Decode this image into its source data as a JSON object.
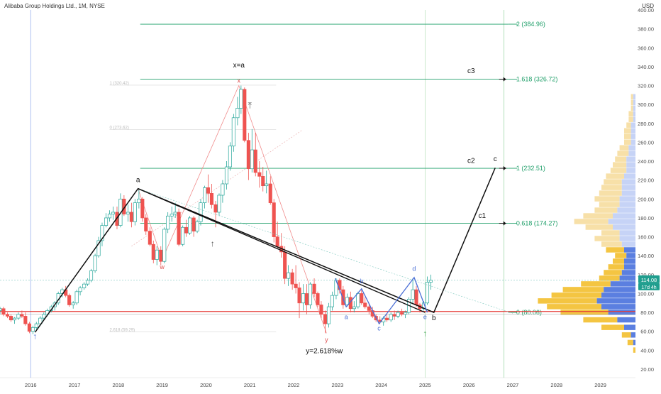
{
  "header": {
    "symbol_line": "Alibaba Group Holdings Ltd., 1M, NYSE",
    "currency": "USD"
  },
  "price_tags": {
    "last": "114.08",
    "countdown": "17d 4h"
  },
  "colors": {
    "up": "#26a69a",
    "down": "#ef5350",
    "fib": "#22a06b",
    "blue": "#4a6fd6",
    "hline_red": "#e53935"
  },
  "chart_data": {
    "type": "candlestick",
    "ylim": [
      20,
      400
    ],
    "xlim": [
      2015.3,
      2029.8
    ],
    "y_ticks": [
      20,
      40,
      60,
      80,
      100,
      120,
      140,
      160,
      180,
      200,
      220,
      240,
      260,
      280,
      300,
      320,
      340,
      360,
      380,
      400
    ],
    "x_ticks": [
      "2016",
      "2017",
      "2018",
      "2019",
      "2020",
      "2021",
      "2022",
      "2023",
      "2024",
      "2025",
      "2026",
      "2027",
      "2028",
      "2029"
    ],
    "x_tick_values": [
      2016,
      2017,
      2018,
      2019,
      2020,
      2021,
      2022,
      2023,
      2024,
      2025,
      2026,
      2027,
      2028,
      2029
    ],
    "fib_levels": [
      {
        "label": "2 (384.96)",
        "value": 384.96
      },
      {
        "label": "1.618 (326.72)",
        "value": 326.72
      },
      {
        "label": "1 (232.51)",
        "value": 232.51
      },
      {
        "label": "0.618 (174.27)",
        "value": 174.27
      },
      {
        "label": "0 (80.06)",
        "value": 80.06
      }
    ],
    "faded_fib": [
      {
        "label": "1 (320.42)",
        "value": 320.42
      },
      {
        "label": "0 (273.62)",
        "value": 273.62
      },
      {
        "label": "2.618 (59.29)",
        "value": 59.29
      }
    ],
    "wave_path": [
      [
        2016.1,
        59
      ],
      [
        2018.45,
        211
      ],
      [
        2025.2,
        80
      ],
      [
        2026.6,
        233
      ]
    ],
    "wave_labels": [
      {
        "text": "a",
        "x": 2018.45,
        "y": 218
      },
      {
        "text": "b",
        "x": 2025.2,
        "y": 72
      },
      {
        "text": "c",
        "x": 2026.6,
        "y": 240
      },
      {
        "text": "c1",
        "x": 2026.3,
        "y": 180
      },
      {
        "text": "c2",
        "x": 2026.05,
        "y": 238
      },
      {
        "text": "c3",
        "x": 2026.05,
        "y": 333
      },
      {
        "text": "x=a",
        "x": 2020.75,
        "y": 339
      }
    ],
    "pink_labels": [
      {
        "text": "x",
        "x": 2020.75,
        "y": 323
      },
      {
        "text": "w",
        "x": 2019.0,
        "y": 126
      },
      {
        "text": "y",
        "x": 2022.75,
        "y": 49
      }
    ],
    "blue_path": [
      [
        2022.95,
        116
      ],
      [
        2023.2,
        86
      ],
      [
        2023.55,
        105
      ],
      [
        2023.95,
        68
      ],
      [
        2024.75,
        117
      ],
      [
        2025.05,
        80
      ]
    ],
    "blue_labels": [
      {
        "text": "a",
        "x": 2023.2,
        "y": 73
      },
      {
        "text": "b",
        "x": 2023.55,
        "y": 111
      },
      {
        "text": "c",
        "x": 2023.95,
        "y": 61
      },
      {
        "text": "d",
        "x": 2024.75,
        "y": 124
      },
      {
        "text": "e",
        "x": 2025.0,
        "y": 73
      }
    ],
    "annotation": "y=2.618%w",
    "candles": [
      [
        2015.3,
        82,
        86,
        78,
        84
      ],
      [
        2015.38,
        84,
        86,
        76,
        78
      ],
      [
        2015.47,
        78,
        80,
        74,
        76
      ],
      [
        2015.55,
        76,
        78,
        70,
        72
      ],
      [
        2015.63,
        72,
        75,
        68,
        74
      ],
      [
        2015.72,
        74,
        80,
        72,
        78
      ],
      [
        2015.8,
        78,
        82,
        74,
        76
      ],
      [
        2015.88,
        76,
        80,
        66,
        68
      ],
      [
        2015.97,
        68,
        70,
        58,
        60
      ],
      [
        2016.05,
        60,
        66,
        57,
        64
      ],
      [
        2016.13,
        64,
        70,
        62,
        68
      ],
      [
        2016.22,
        68,
        76,
        66,
        74
      ],
      [
        2016.3,
        74,
        80,
        72,
        78
      ],
      [
        2016.38,
        78,
        84,
        76,
        82
      ],
      [
        2016.47,
        82,
        88,
        80,
        86
      ],
      [
        2016.55,
        86,
        92,
        82,
        90
      ],
      [
        2016.63,
        90,
        102,
        88,
        100
      ],
      [
        2016.72,
        100,
        106,
        96,
        104
      ],
      [
        2016.8,
        104,
        108,
        96,
        98
      ],
      [
        2016.88,
        98,
        100,
        86,
        88
      ],
      [
        2016.97,
        88,
        92,
        84,
        90
      ],
      [
        2017.05,
        90,
        104,
        88,
        102
      ],
      [
        2017.13,
        102,
        108,
        98,
        106
      ],
      [
        2017.22,
        106,
        112,
        104,
        110
      ],
      [
        2017.3,
        110,
        116,
        108,
        114
      ],
      [
        2017.38,
        114,
        126,
        112,
        124
      ],
      [
        2017.47,
        124,
        142,
        122,
        140
      ],
      [
        2017.55,
        140,
        160,
        138,
        156
      ],
      [
        2017.63,
        156,
        175,
        150,
        172
      ],
      [
        2017.72,
        172,
        185,
        170,
        180
      ],
      [
        2017.8,
        180,
        188,
        176,
        184
      ],
      [
        2017.88,
        184,
        192,
        178,
        186
      ],
      [
        2017.97,
        186,
        192,
        168,
        172
      ],
      [
        2018.05,
        172,
        206,
        170,
        200
      ],
      [
        2018.13,
        200,
        204,
        182,
        184
      ],
      [
        2018.22,
        184,
        194,
        176,
        186
      ],
      [
        2018.3,
        186,
        196,
        170,
        176
      ],
      [
        2018.38,
        176,
        200,
        172,
        196
      ],
      [
        2018.47,
        196,
        211,
        190,
        200
      ],
      [
        2018.55,
        200,
        202,
        176,
        180
      ],
      [
        2018.63,
        180,
        184,
        162,
        166
      ],
      [
        2018.72,
        166,
        170,
        150,
        152
      ],
      [
        2018.8,
        152,
        156,
        132,
        136
      ],
      [
        2018.88,
        136,
        150,
        130,
        146
      ],
      [
        2018.97,
        146,
        150,
        130,
        134
      ],
      [
        2019.05,
        134,
        170,
        132,
        168
      ],
      [
        2019.13,
        168,
        186,
        164,
        182
      ],
      [
        2019.22,
        182,
        192,
        176,
        184
      ],
      [
        2019.3,
        184,
        196,
        180,
        186
      ],
      [
        2019.38,
        186,
        190,
        150,
        152
      ],
      [
        2019.47,
        152,
        172,
        150,
        170
      ],
      [
        2019.55,
        170,
        178,
        160,
        164
      ],
      [
        2019.63,
        164,
        182,
        162,
        180
      ],
      [
        2019.72,
        180,
        182,
        160,
        166
      ],
      [
        2019.8,
        166,
        178,
        164,
        176
      ],
      [
        2019.88,
        176,
        200,
        172,
        196
      ],
      [
        2019.97,
        196,
        214,
        190,
        212
      ],
      [
        2020.05,
        212,
        226,
        196,
        206
      ],
      [
        2020.13,
        206,
        216,
        190,
        194
      ],
      [
        2020.22,
        194,
        198,
        170,
        186
      ],
      [
        2020.3,
        186,
        206,
        182,
        204
      ],
      [
        2020.38,
        204,
        220,
        196,
        216
      ],
      [
        2020.47,
        216,
        240,
        210,
        234
      ],
      [
        2020.55,
        234,
        260,
        230,
        256
      ],
      [
        2020.63,
        256,
        290,
        250,
        286
      ],
      [
        2020.72,
        286,
        308,
        278,
        296
      ],
      [
        2020.8,
        296,
        320,
        290,
        316
      ],
      [
        2020.88,
        316,
        318,
        260,
        262
      ],
      [
        2020.97,
        262,
        270,
        220,
        232
      ],
      [
        2021.05,
        232,
        274,
        228,
        252
      ],
      [
        2021.13,
        252,
        270,
        224,
        228
      ],
      [
        2021.22,
        228,
        240,
        212,
        224
      ],
      [
        2021.3,
        224,
        234,
        208,
        214
      ],
      [
        2021.38,
        214,
        230,
        206,
        216
      ],
      [
        2021.47,
        216,
        224,
        194,
        196
      ],
      [
        2021.55,
        196,
        200,
        154,
        160
      ],
      [
        2021.63,
        160,
        176,
        148,
        150
      ],
      [
        2021.72,
        150,
        164,
        138,
        144
      ],
      [
        2021.8,
        144,
        150,
        110,
        116
      ],
      [
        2021.88,
        116,
        130,
        108,
        122
      ],
      [
        2021.97,
        122,
        126,
        104,
        110
      ],
      [
        2022.05,
        110,
        130,
        100,
        106
      ],
      [
        2022.13,
        106,
        112,
        74,
        90
      ],
      [
        2022.22,
        90,
        110,
        82,
        100
      ],
      [
        2022.3,
        100,
        110,
        78,
        88
      ],
      [
        2022.38,
        88,
        112,
        84,
        110
      ],
      [
        2022.47,
        110,
        116,
        96,
        100
      ],
      [
        2022.55,
        100,
        102,
        86,
        88
      ],
      [
        2022.63,
        88,
        92,
        74,
        78
      ],
      [
        2022.72,
        78,
        82,
        58,
        68
      ],
      [
        2022.8,
        68,
        90,
        64,
        86
      ],
      [
        2022.88,
        86,
        102,
        82,
        98
      ],
      [
        2022.97,
        98,
        116,
        94,
        114
      ],
      [
        2023.05,
        114,
        116,
        100,
        104
      ],
      [
        2023.13,
        104,
        108,
        84,
        88
      ],
      [
        2023.22,
        88,
        100,
        86,
        96
      ],
      [
        2023.3,
        96,
        102,
        80,
        84
      ],
      [
        2023.38,
        84,
        92,
        80,
        86
      ],
      [
        2023.47,
        86,
        102,
        84,
        100
      ],
      [
        2023.55,
        100,
        104,
        88,
        90
      ],
      [
        2023.63,
        90,
        96,
        84,
        86
      ],
      [
        2023.72,
        86,
        90,
        78,
        82
      ],
      [
        2023.8,
        82,
        86,
        74,
        76
      ],
      [
        2023.88,
        76,
        78,
        70,
        72
      ],
      [
        2023.97,
        72,
        76,
        68,
        70
      ],
      [
        2024.05,
        70,
        76,
        66,
        74
      ],
      [
        2024.13,
        74,
        78,
        70,
        72
      ],
      [
        2024.22,
        72,
        80,
        70,
        78
      ],
      [
        2024.3,
        78,
        82,
        72,
        76
      ],
      [
        2024.38,
        76,
        82,
        74,
        80
      ],
      [
        2024.47,
        80,
        84,
        76,
        78
      ],
      [
        2024.55,
        78,
        82,
        74,
        80
      ],
      [
        2024.63,
        80,
        96,
        78,
        94
      ],
      [
        2024.72,
        94,
        116,
        90,
        104
      ],
      [
        2024.8,
        104,
        108,
        86,
        88
      ],
      [
        2024.88,
        88,
        90,
        80,
        84
      ],
      [
        2024.97,
        84,
        92,
        82,
        90
      ],
      [
        2025.05,
        90,
        118,
        88,
        112
      ],
      [
        2025.13,
        112,
        120,
        104,
        114
      ]
    ],
    "volume_profile": [
      [
        40,
        2,
        0
      ],
      [
        48,
        5,
        2
      ],
      [
        56,
        8,
        4
      ],
      [
        64,
        20,
        10
      ],
      [
        72,
        30,
        16
      ],
      [
        80,
        42,
        24
      ],
      [
        86,
        48,
        30
      ],
      [
        92,
        52,
        34
      ],
      [
        98,
        44,
        30
      ],
      [
        104,
        36,
        28
      ],
      [
        110,
        26,
        22
      ],
      [
        116,
        18,
        14
      ],
      [
        122,
        16,
        12
      ],
      [
        128,
        14,
        10
      ],
      [
        134,
        10,
        10
      ],
      [
        140,
        10,
        8
      ],
      [
        146,
        16,
        10
      ],
      [
        152,
        18,
        12
      ],
      [
        158,
        22,
        14
      ],
      [
        164,
        16,
        14
      ],
      [
        170,
        24,
        20
      ],
      [
        176,
        30,
        24
      ],
      [
        182,
        26,
        20
      ],
      [
        188,
        20,
        16
      ],
      [
        194,
        18,
        14
      ],
      [
        200,
        22,
        14
      ],
      [
        206,
        20,
        12
      ],
      [
        212,
        18,
        12
      ],
      [
        218,
        16,
        12
      ],
      [
        224,
        16,
        10
      ],
      [
        230,
        14,
        8
      ],
      [
        236,
        12,
        8
      ],
      [
        242,
        10,
        8
      ],
      [
        248,
        10,
        6
      ],
      [
        254,
        8,
        6
      ],
      [
        260,
        6,
        4
      ],
      [
        266,
        6,
        4
      ],
      [
        272,
        6,
        4
      ],
      [
        278,
        4,
        4
      ],
      [
        284,
        4,
        2
      ],
      [
        290,
        4,
        2
      ],
      [
        296,
        2,
        2
      ],
      [
        302,
        2,
        2
      ],
      [
        308,
        2,
        2
      ]
    ]
  }
}
